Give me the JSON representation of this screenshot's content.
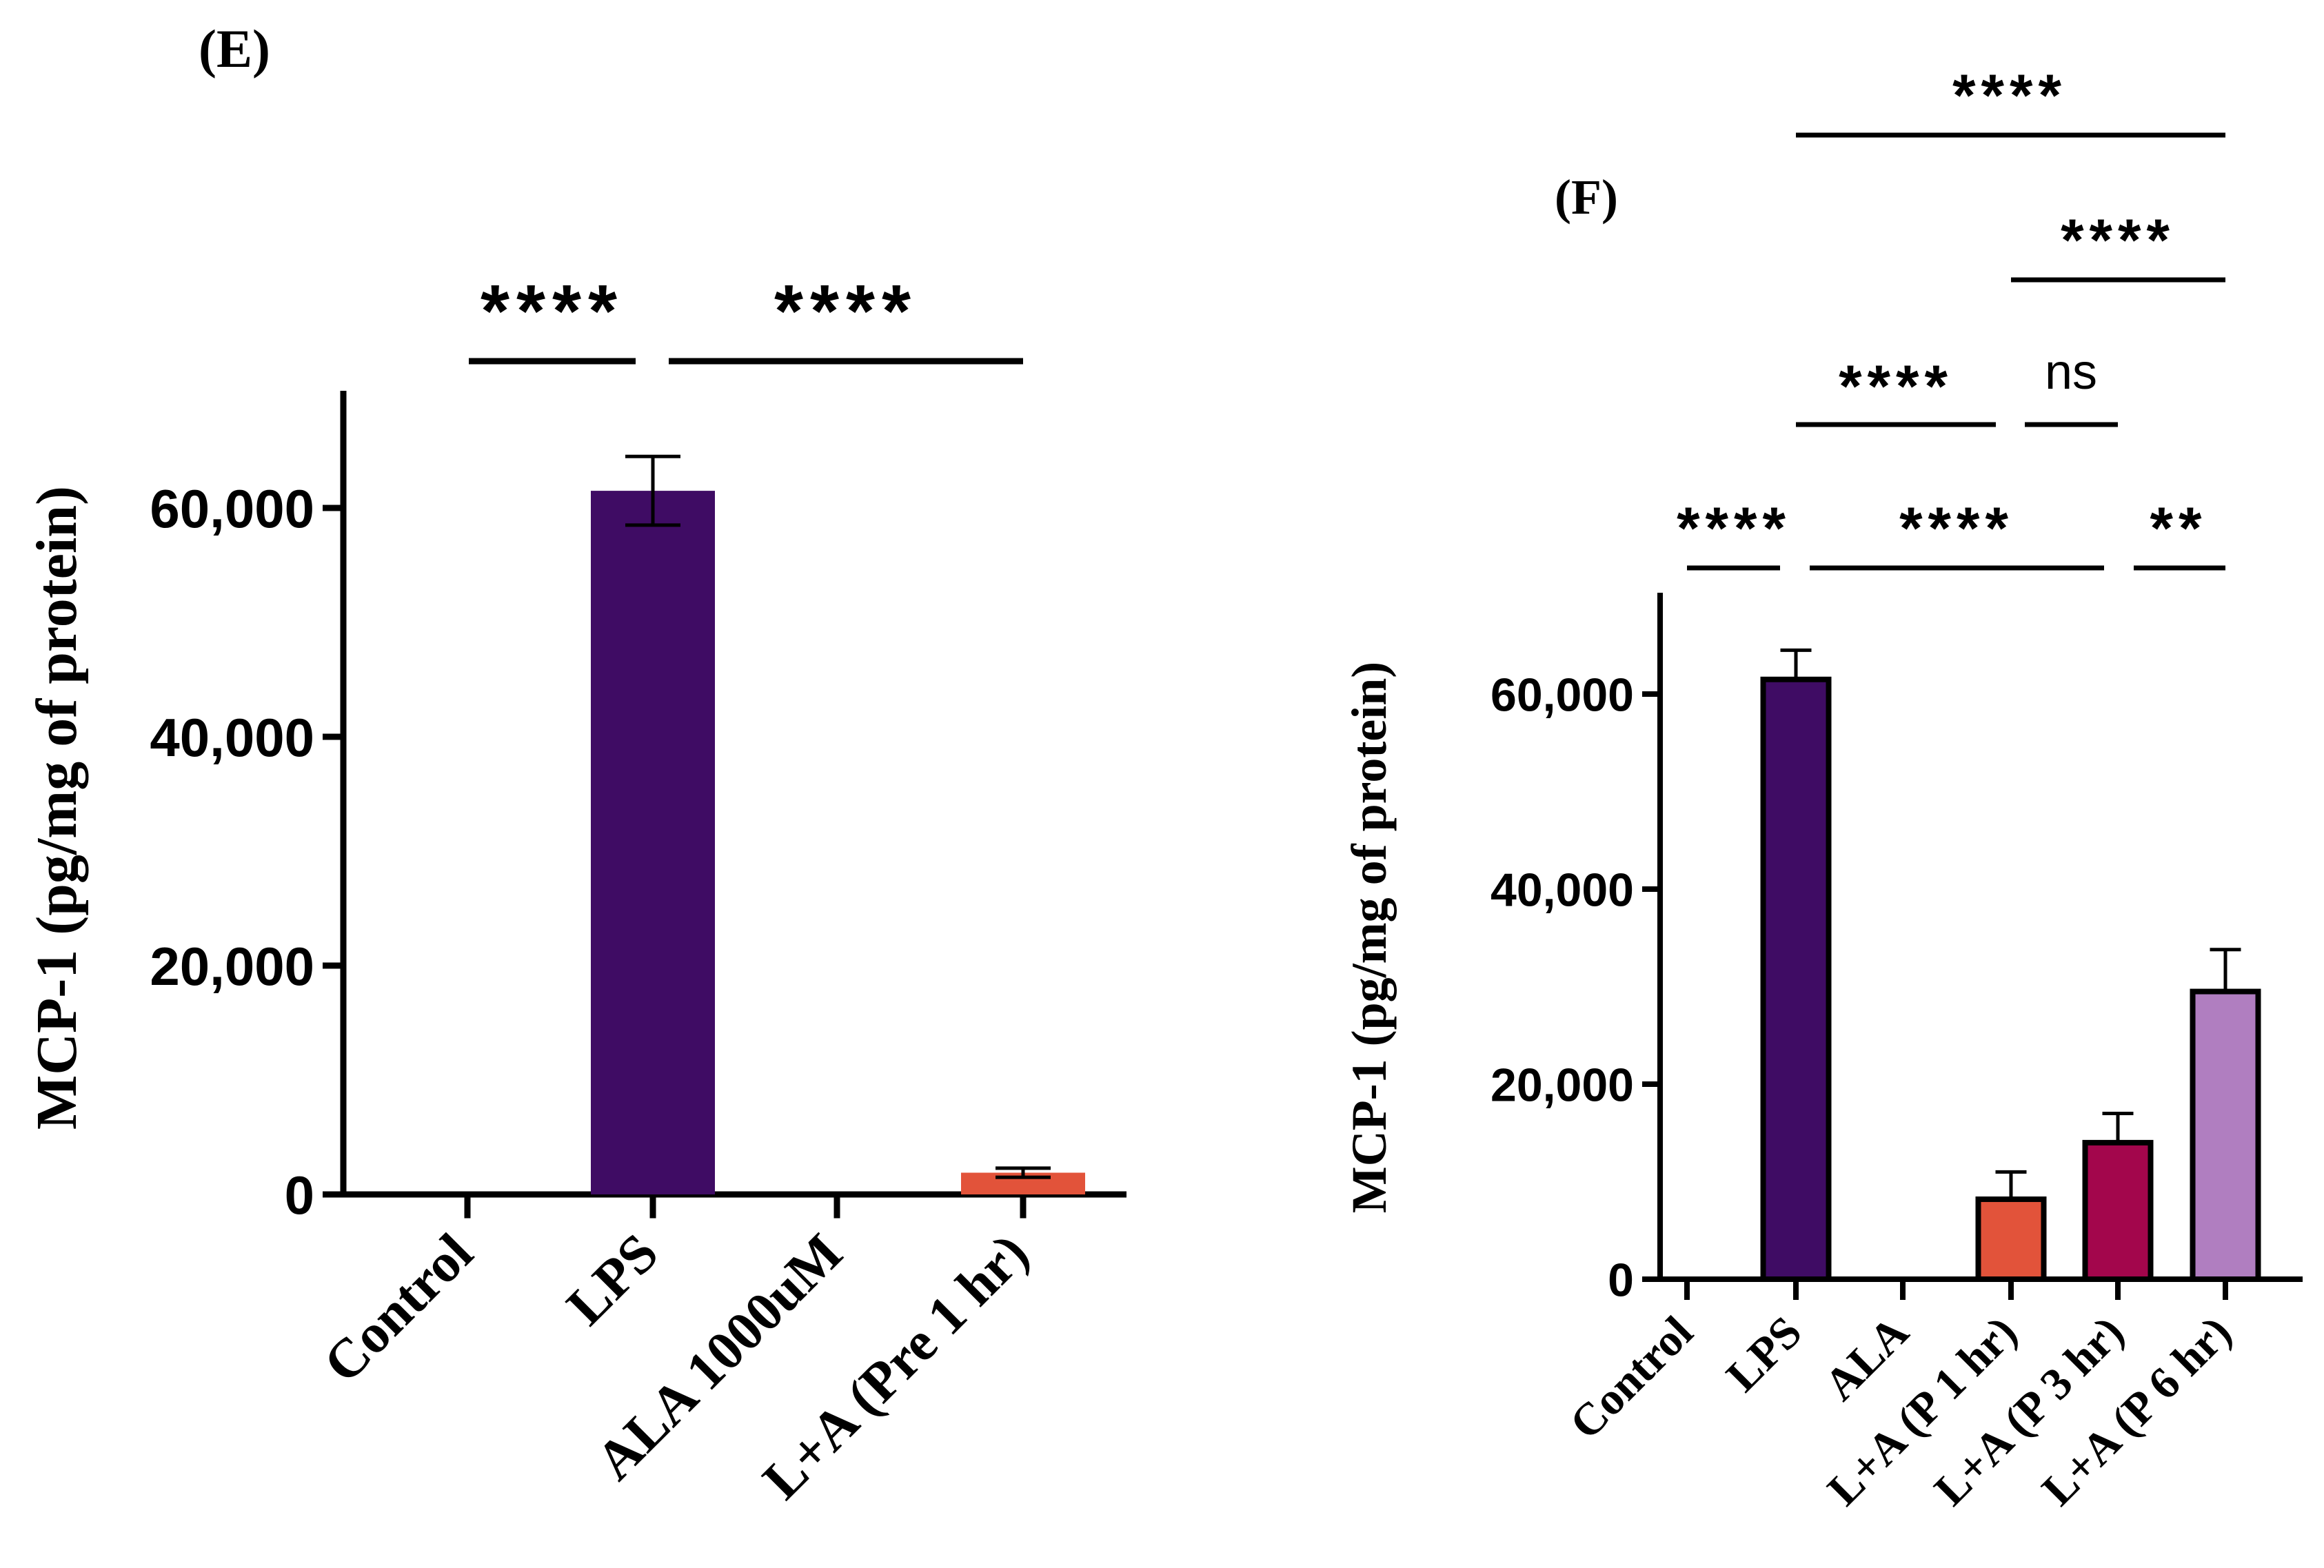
{
  "chart_data": [
    {
      "panel_label": "(E)",
      "type": "bar",
      "ylabel": "MCP-1 (pg/mg of protein)",
      "ylim": [
        0,
        70000
      ],
      "yticks": [
        0,
        20000,
        40000,
        60000
      ],
      "ytick_labels": [
        "0",
        "20,000",
        "40,000",
        "60,000"
      ],
      "categories": [
        "Control",
        "LPS",
        "ALA 1000uM",
        "L+A (Pre 1 hr)"
      ],
      "values": [
        0,
        61500,
        0,
        1900
      ],
      "errors": [
        0,
        3000,
        0,
        400
      ],
      "bar_colors": [
        "#3f0c64",
        "#3f0c64",
        "#3f0c64",
        "#e2533a"
      ],
      "bar_outline": false,
      "comparisons": [
        {
          "from": 0,
          "to": 1,
          "label": "****"
        },
        {
          "from": 1,
          "to": 3,
          "label": "****"
        }
      ]
    },
    {
      "panel_label": "(F)",
      "type": "bar",
      "ylabel": "MCP-1 (pg/mg of protein)",
      "ylim": [
        0,
        70000
      ],
      "yticks": [
        0,
        20000,
        40000,
        60000
      ],
      "ytick_labels": [
        "0",
        "20,000",
        "40,000",
        "60,000"
      ],
      "categories": [
        "Control",
        "LPS",
        "ALA",
        "L+A (P 1 hr)",
        "L+A (P 3 hr)",
        "L+A (P 6 hr)"
      ],
      "values": [
        0,
        61500,
        0,
        8200,
        14000,
        29500
      ],
      "errors": [
        0,
        3000,
        0,
        2800,
        3000,
        4300
      ],
      "bar_colors": [
        "#3f0c64",
        "#3f0c64",
        "#3f0c64",
        "#e2533a",
        "#a3064c",
        "#b07ec0"
      ],
      "bar_outline": true,
      "comparisons": [
        {
          "from": 0,
          "to": 1,
          "label": "****"
        },
        {
          "from": 1,
          "to": 4,
          "label": "****"
        },
        {
          "from": 4,
          "to": 5,
          "label": "**"
        },
        {
          "from": 1,
          "to": 3,
          "label": "****"
        },
        {
          "from": 3,
          "to": 4,
          "label": "ns"
        },
        {
          "from": 3,
          "to": 5,
          "label": "****"
        },
        {
          "from": 1,
          "to": 5,
          "label": "****"
        }
      ]
    }
  ]
}
